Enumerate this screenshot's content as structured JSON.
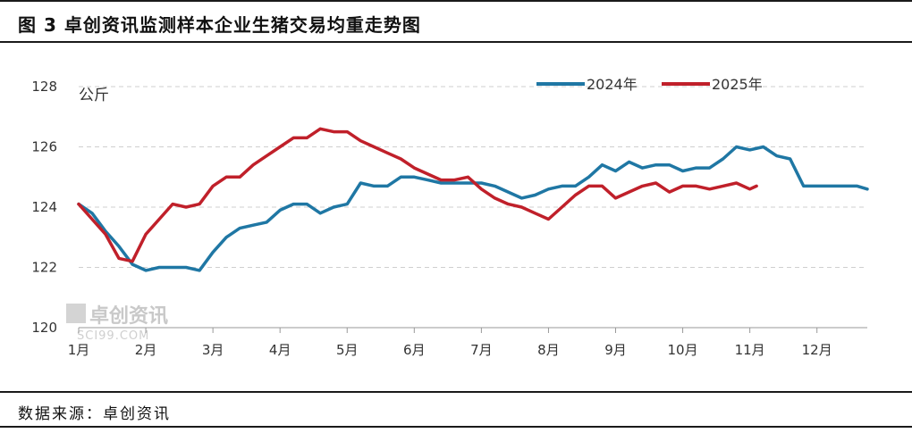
{
  "header": {
    "title": "图 3 卓创资讯监测样本企业生猪交易均重走势图"
  },
  "footer": {
    "source": "数据来源：卓创资讯"
  },
  "watermark": {
    "name": "卓创资讯",
    "domain": "SCI99.COM"
  },
  "chart_data": {
    "type": "line",
    "ylabel": "公斤",
    "ylim": [
      120,
      128
    ],
    "yticks": [
      120,
      122,
      124,
      126,
      128
    ],
    "xlim": [
      1,
      12.75
    ],
    "xticks": [
      {
        "label": "1月",
        "x": 1
      },
      {
        "label": "2月",
        "x": 2
      },
      {
        "label": "3月",
        "x": 3
      },
      {
        "label": "4月",
        "x": 4
      },
      {
        "label": "5月",
        "x": 5
      },
      {
        "label": "6月",
        "x": 6
      },
      {
        "label": "7月",
        "x": 7
      },
      {
        "label": "8月",
        "x": 8
      },
      {
        "label": "9月",
        "x": 9
      },
      {
        "label": "10月",
        "x": 10
      },
      {
        "label": "11月",
        "x": 11
      },
      {
        "label": "12月",
        "x": 12
      }
    ],
    "grid": true,
    "legend": "top-right",
    "series": [
      {
        "name": "2024年",
        "color": "#1f77a4",
        "x": [
          1.0,
          1.2,
          1.4,
          1.6,
          1.8,
          2.0,
          2.2,
          2.4,
          2.6,
          2.8,
          3.0,
          3.2,
          3.4,
          3.6,
          3.8,
          4.0,
          4.2,
          4.4,
          4.6,
          4.8,
          5.0,
          5.2,
          5.4,
          5.6,
          5.8,
          6.0,
          6.2,
          6.4,
          6.6,
          6.8,
          7.0,
          7.2,
          7.4,
          7.6,
          7.8,
          8.0,
          8.2,
          8.4,
          8.6,
          8.8,
          9.0,
          9.2,
          9.4,
          9.6,
          9.8,
          10.0,
          10.2,
          10.4,
          10.6,
          10.8,
          11.0,
          11.2,
          11.4,
          11.6,
          11.8,
          12.0,
          12.2,
          12.4,
          12.6,
          12.75
        ],
        "values": [
          124.1,
          123.8,
          123.2,
          122.7,
          122.1,
          121.9,
          122.0,
          122.0,
          122.0,
          121.9,
          122.5,
          123.0,
          123.3,
          123.4,
          123.5,
          123.9,
          124.1,
          124.1,
          123.8,
          124.0,
          124.1,
          124.8,
          124.7,
          124.7,
          125.0,
          125.0,
          124.9,
          124.8,
          124.8,
          124.8,
          124.8,
          124.7,
          124.5,
          124.3,
          124.4,
          124.6,
          124.7,
          124.7,
          125.0,
          125.4,
          125.2,
          125.5,
          125.3,
          125.4,
          125.4,
          125.2,
          125.3,
          125.3,
          125.6,
          126.0,
          125.9,
          126.0,
          125.7,
          125.6,
          124.7,
          124.7,
          124.7,
          124.7,
          124.7,
          124.6
        ]
      },
      {
        "name": "2025年",
        "color": "#c0202a",
        "x": [
          1.0,
          1.2,
          1.4,
          1.6,
          1.8,
          2.0,
          2.2,
          2.4,
          2.6,
          2.8,
          3.0,
          3.2,
          3.4,
          3.6,
          3.8,
          4.0,
          4.2,
          4.4,
          4.6,
          4.8,
          5.0,
          5.2,
          5.4,
          5.6,
          5.8,
          6.0,
          6.2,
          6.4,
          6.6,
          6.8,
          7.0,
          7.2,
          7.4,
          7.6,
          7.8,
          8.0,
          8.2,
          8.4,
          8.6,
          8.8,
          9.0,
          9.2,
          9.4,
          9.6,
          9.8,
          10.0,
          10.2,
          10.4,
          10.6,
          10.8,
          11.0,
          11.1
        ],
        "values": [
          124.1,
          123.6,
          123.1,
          122.3,
          122.2,
          123.1,
          123.6,
          124.1,
          124.0,
          124.1,
          124.7,
          125.0,
          125.0,
          125.4,
          125.7,
          126.0,
          126.3,
          126.3,
          126.6,
          126.5,
          126.5,
          126.2,
          126.0,
          125.8,
          125.6,
          125.3,
          125.1,
          124.9,
          124.9,
          125.0,
          124.6,
          124.3,
          124.1,
          124.0,
          123.8,
          123.6,
          124.0,
          124.4,
          124.7,
          124.7,
          124.3,
          124.5,
          124.7,
          124.8,
          124.5,
          124.7,
          124.7,
          124.6,
          124.7,
          124.8,
          124.6,
          124.7
        ]
      }
    ]
  }
}
